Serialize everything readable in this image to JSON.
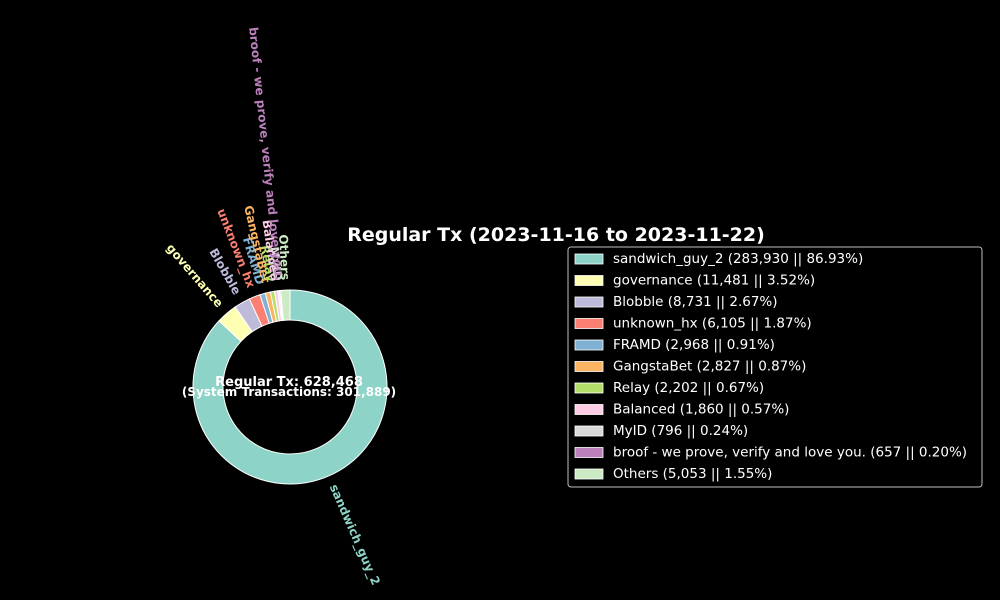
{
  "chart_data": {
    "type": "pie",
    "title": "Regular Tx (2023-11-16 to 2023-11-22)",
    "center_text": {
      "main": "Regular Tx: 628,468",
      "sub": "(System Transactions: 301,889)"
    },
    "slices": [
      {
        "label": "sandwich_guy_2",
        "value": 283930,
        "percent": 86.93,
        "color": "#8dd3c7",
        "legend": "sandwich_guy_2 (283,930 || 86.93%)"
      },
      {
        "label": "governance",
        "value": 11481,
        "percent": 3.52,
        "color": "#ffffb3",
        "legend": "governance (11,481 || 3.52%)"
      },
      {
        "label": "Blobble",
        "value": 8731,
        "percent": 2.67,
        "color": "#bebada",
        "legend": "Blobble (8,731 || 2.67%)"
      },
      {
        "label": "unknown_hx",
        "value": 6105,
        "percent": 1.87,
        "color": "#fb8072",
        "legend": "unknown_hx (6,105 || 1.87%)"
      },
      {
        "label": "FRAMD",
        "value": 2968,
        "percent": 0.91,
        "color": "#80b1d3",
        "legend": "FRAMD (2,968 || 0.91%)"
      },
      {
        "label": "GangstaBet",
        "value": 2827,
        "percent": 0.87,
        "color": "#fdb462",
        "legend": "GangstaBet (2,827 || 0.87%)"
      },
      {
        "label": "Relay",
        "value": 2202,
        "percent": 0.67,
        "color": "#b3de69",
        "legend": "Relay (2,202 || 0.67%)"
      },
      {
        "label": "Balanced",
        "value": 1860,
        "percent": 0.57,
        "color": "#fccde5",
        "legend": "Balanced (1,860 || 0.57%)"
      },
      {
        "label": "MyID",
        "value": 796,
        "percent": 0.24,
        "color": "#d9d9d9",
        "legend": "MyID (796 || 0.24%)"
      },
      {
        "label": "broof - we prove, verify and love you.",
        "value": 657,
        "percent": 0.2,
        "color": "#bc80bd",
        "legend": "broof - we prove, verify and love you. (657 || 0.20%)"
      },
      {
        "label": "Others",
        "value": 5053,
        "percent": 1.55,
        "color": "#ccebc5",
        "legend": "Others (5,053 || 1.55%)"
      }
    ],
    "legend_position": "right",
    "donut": true
  }
}
